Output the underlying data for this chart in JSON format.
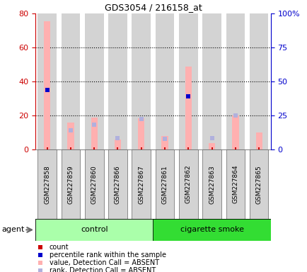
{
  "title": "GDS3054 / 216158_at",
  "samples": [
    "GSM227858",
    "GSM227859",
    "GSM227860",
    "GSM227866",
    "GSM227867",
    "GSM227861",
    "GSM227862",
    "GSM227863",
    "GSM227864",
    "GSM227865"
  ],
  "count_values": [
    75.5,
    16.0,
    19.0,
    6.0,
    18.5,
    8.0,
    49.0,
    4.0,
    20.0,
    10.0
  ],
  "percentile_rank_values": [
    44.0,
    0,
    0,
    0,
    0,
    0,
    39.0,
    0,
    0,
    0
  ],
  "absent_value": [
    75.5,
    16.0,
    19.0,
    6.0,
    18.5,
    8.0,
    49.0,
    4.0,
    20.0,
    10.0
  ],
  "absent_rank": [
    0,
    14.0,
    18.5,
    8.5,
    22.5,
    8.0,
    0,
    8.5,
    25.0,
    0
  ],
  "groups": [
    {
      "label": "control",
      "start": 0,
      "end": 5,
      "color": "#aaffaa"
    },
    {
      "label": "cigarette smoke",
      "start": 5,
      "end": 10,
      "color": "#33dd33"
    }
  ],
  "ylim_left": [
    0,
    80
  ],
  "ylim_right": [
    0,
    100
  ],
  "yticks_left": [
    0,
    20,
    40,
    60,
    80
  ],
  "yticks_right": [
    0,
    25,
    50,
    75,
    100
  ],
  "yticklabels_right": [
    "0",
    "25",
    "50",
    "75",
    "100%"
  ],
  "color_count": "#cc0000",
  "color_rank": "#0000cc",
  "color_absent_value": "#ffb0b0",
  "color_absent_rank": "#b0b0dd",
  "bar_bg_color": "#d3d3d3",
  "legend_items": [
    {
      "label": "count",
      "color": "#cc0000"
    },
    {
      "label": "percentile rank within the sample",
      "color": "#0000cc"
    },
    {
      "label": "value, Detection Call = ABSENT",
      "color": "#ffb0b0"
    },
    {
      "label": "rank, Detection Call = ABSENT",
      "color": "#b0b0dd"
    }
  ],
  "agent_label": "agent"
}
